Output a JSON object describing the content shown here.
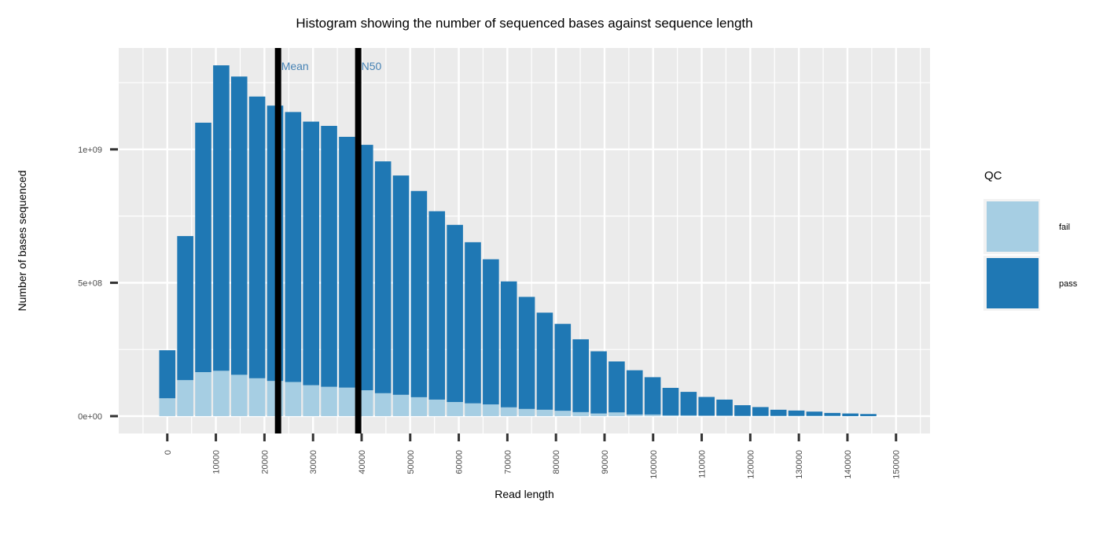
{
  "chart_data": {
    "type": "bar",
    "stacked": true,
    "title": "Histogram showing the number of sequenced bases against sequence length",
    "xlabel": "Read length",
    "ylabel": "Number of bases sequenced",
    "xlim": [
      -10000,
      157000
    ],
    "ylim": [
      -65000000,
      1380000000
    ],
    "bin_width": 3700,
    "x": [
      0,
      3700,
      7400,
      11100,
      14800,
      18500,
      22200,
      25900,
      29600,
      33300,
      37000,
      40700,
      44400,
      48100,
      51800,
      55500,
      59200,
      62900,
      66600,
      70300,
      74000,
      77700,
      81400,
      85100,
      88800,
      92500,
      96200,
      99900,
      103600,
      107300,
      111000,
      114700,
      118400,
      122100,
      125800,
      129500,
      133200,
      136900,
      140600,
      144300
    ],
    "x_ticks": [
      0,
      10000,
      20000,
      30000,
      40000,
      50000,
      60000,
      70000,
      80000,
      90000,
      100000,
      110000,
      120000,
      130000,
      140000,
      150000
    ],
    "x_tick_labels": [
      "0",
      "10000",
      "20000",
      "30000",
      "40000",
      "50000",
      "60000",
      "70000",
      "80000",
      "90000",
      "100000",
      "110000",
      "120000",
      "130000",
      "140000",
      "150000"
    ],
    "y_ticks": [
      0,
      500000000,
      1000000000
    ],
    "y_tick_labels": [
      "0e+00",
      "5e+08",
      "1e+09"
    ],
    "series": [
      {
        "name": "fail",
        "color": "#a6cee3",
        "values": [
          67000000,
          135000000,
          165000000,
          170000000,
          155000000,
          142000000,
          132000000,
          128000000,
          116000000,
          110000000,
          107000000,
          97000000,
          86000000,
          80000000,
          71000000,
          62000000,
          53000000,
          48000000,
          44000000,
          33000000,
          27000000,
          24000000,
          20000000,
          15000000,
          10000000,
          14000000,
          6000000,
          6000000,
          3000000,
          3000000,
          2000000,
          2000000,
          1000000,
          1000000,
          1000000,
          1000000,
          1000000,
          1000000,
          0,
          0
        ]
      },
      {
        "name": "pass",
        "color": "#1f78b4",
        "values": [
          180000000,
          540000000,
          935000000,
          1145000000,
          1118000000,
          1056000000,
          1032000000,
          1012000000,
          988000000,
          978000000,
          940000000,
          920000000,
          869000000,
          822000000,
          773000000,
          706000000,
          664000000,
          604000000,
          544000000,
          472000000,
          420000000,
          364000000,
          326000000,
          273000000,
          233000000,
          191000000,
          166000000,
          140000000,
          103000000,
          88000000,
          70000000,
          60000000,
          40000000,
          33000000,
          23000000,
          20000000,
          16000000,
          11000000,
          10000000,
          8000000
        ]
      }
    ],
    "vlines": [
      {
        "label": "Mean",
        "x": 22800,
        "color": "#4682b4"
      },
      {
        "label": "N50",
        "x": 39300,
        "color": "#4682b4"
      }
    ],
    "legend": {
      "title": "QC",
      "position": "right",
      "entries": [
        {
          "label": "fail",
          "color": "#a6cee3"
        },
        {
          "label": "pass",
          "color": "#1f78b4"
        }
      ]
    },
    "panel_background": "#ebebeb",
    "grid": true
  }
}
